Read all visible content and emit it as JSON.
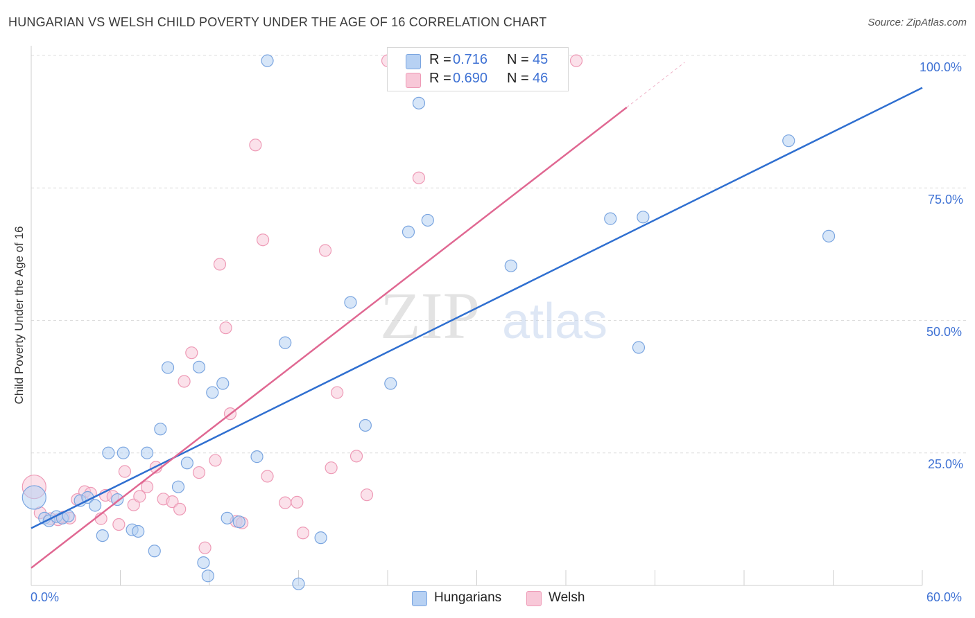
{
  "title": "HUNGARIAN VS WELSH CHILD POVERTY UNDER THE AGE OF 16 CORRELATION CHART",
  "source": "Source: ZipAtlas.com",
  "watermark": {
    "zip": "ZIP",
    "atlas": "atlas"
  },
  "legend_top": {
    "rows": [
      {
        "r_label": "R =",
        "r_value": "0.716",
        "n_label": "N =",
        "n_value": "45"
      },
      {
        "r_label": "R =",
        "r_value": "0.690",
        "n_label": "N =",
        "n_value": "46"
      }
    ]
  },
  "legend_bottom": {
    "items": [
      {
        "label": "Hungarians"
      },
      {
        "label": "Welsh"
      }
    ]
  },
  "x_axis": {
    "min_label": "0.0%",
    "max_label": "60.0%"
  },
  "y_axis": {
    "label": "Child Poverty Under the Age of 16",
    "ticks": [
      "100.0%",
      "75.0%",
      "50.0%",
      "25.0%"
    ]
  },
  "colors": {
    "hungarians_fill": "#b7d1f3",
    "hungarians_stroke": "#7aa5e0",
    "hungarians_line": "#2f6fd0",
    "welsh_fill": "#f8c8d8",
    "welsh_stroke": "#ee9ab6",
    "welsh_line": "#e06892",
    "accent_text": "#3f72d4",
    "grid": "#dcdcdc"
  },
  "chart_data": {
    "type": "scatter",
    "title": "HUNGARIAN VS WELSH CHILD POVERTY UNDER THE AGE OF 16 CORRELATION CHART",
    "xlabel": "",
    "ylabel": "Child Poverty Under the Age of 16",
    "xlim": [
      0,
      60
    ],
    "ylim": [
      0,
      100
    ],
    "y_ticks": [
      25,
      50,
      75,
      100
    ],
    "grid": true,
    "legend_position": "bottom",
    "series": [
      {
        "name": "Hungarians",
        "r": 0.716,
        "n": 45,
        "trend": {
          "x": [
            0,
            60
          ],
          "y": [
            10.8,
            93.9
          ]
        },
        "points": [
          [
            0.2,
            16.6
          ],
          [
            0.9,
            12.7
          ],
          [
            1.2,
            12.2
          ],
          [
            1.7,
            13.0
          ],
          [
            2.1,
            12.7
          ],
          [
            2.5,
            13.1
          ],
          [
            3.3,
            16.0
          ],
          [
            3.8,
            16.6
          ],
          [
            4.3,
            15.1
          ],
          [
            4.8,
            9.4
          ],
          [
            5.2,
            25.0
          ],
          [
            5.8,
            16.2
          ],
          [
            6.2,
            25.0
          ],
          [
            6.8,
            10.5
          ],
          [
            7.2,
            10.2
          ],
          [
            7.8,
            25.0
          ],
          [
            8.3,
            6.5
          ],
          [
            8.7,
            29.5
          ],
          [
            9.2,
            41.1
          ],
          [
            9.9,
            18.6
          ],
          [
            10.5,
            23.1
          ],
          [
            11.3,
            41.2
          ],
          [
            11.6,
            4.3
          ],
          [
            11.9,
            1.8
          ],
          [
            12.2,
            36.4
          ],
          [
            12.9,
            38.1
          ],
          [
            13.2,
            12.7
          ],
          [
            14.0,
            12.0
          ],
          [
            15.2,
            24.3
          ],
          [
            15.9,
            99.0
          ],
          [
            17.1,
            45.8
          ],
          [
            18.0,
            0.3
          ],
          [
            19.5,
            9.0
          ],
          [
            21.5,
            53.4
          ],
          [
            22.5,
            30.2
          ],
          [
            24.2,
            38.1
          ],
          [
            25.4,
            66.7
          ],
          [
            26.1,
            91.0
          ],
          [
            26.7,
            68.9
          ],
          [
            32.3,
            60.3
          ],
          [
            39.0,
            69.2
          ],
          [
            40.9,
            44.9
          ],
          [
            41.2,
            69.5
          ],
          [
            51.0,
            83.9
          ],
          [
            53.7,
            65.9
          ]
        ]
      },
      {
        "name": "Welsh",
        "r": 0.69,
        "n": 46,
        "trend": {
          "x": [
            0,
            40.1
          ],
          "y": [
            3.3,
            90.2
          ]
        },
        "trend_extension": {
          "x": [
            40.1,
            44.0
          ],
          "y": [
            90.2,
            98.7
          ]
        },
        "points": [
          [
            0.2,
            18.6
          ],
          [
            0.6,
            13.7
          ],
          [
            1.3,
            12.6
          ],
          [
            1.8,
            12.4
          ],
          [
            2.2,
            12.9
          ],
          [
            2.6,
            12.7
          ],
          [
            3.1,
            16.2
          ],
          [
            3.6,
            17.7
          ],
          [
            4.0,
            17.4
          ],
          [
            4.7,
            12.6
          ],
          [
            5.0,
            17.0
          ],
          [
            5.5,
            16.8
          ],
          [
            5.9,
            11.5
          ],
          [
            6.3,
            21.5
          ],
          [
            6.9,
            15.2
          ],
          [
            7.3,
            16.8
          ],
          [
            7.8,
            18.6
          ],
          [
            8.4,
            22.3
          ],
          [
            8.9,
            16.3
          ],
          [
            9.5,
            15.8
          ],
          [
            10.0,
            14.4
          ],
          [
            10.3,
            38.5
          ],
          [
            10.8,
            43.9
          ],
          [
            11.3,
            21.3
          ],
          [
            11.7,
            7.1
          ],
          [
            12.4,
            23.6
          ],
          [
            12.7,
            60.6
          ],
          [
            13.1,
            48.6
          ],
          [
            13.4,
            32.4
          ],
          [
            13.8,
            12.1
          ],
          [
            14.2,
            11.8
          ],
          [
            15.1,
            83.1
          ],
          [
            15.6,
            65.2
          ],
          [
            15.9,
            20.6
          ],
          [
            17.1,
            15.6
          ],
          [
            17.9,
            15.7
          ],
          [
            18.3,
            9.9
          ],
          [
            19.8,
            63.2
          ],
          [
            20.2,
            22.2
          ],
          [
            20.6,
            36.4
          ],
          [
            21.9,
            24.4
          ],
          [
            22.6,
            17.1
          ],
          [
            24.0,
            99.0
          ],
          [
            26.1,
            76.9
          ],
          [
            31.5,
            99.0
          ],
          [
            36.7,
            99.0
          ]
        ]
      }
    ]
  }
}
